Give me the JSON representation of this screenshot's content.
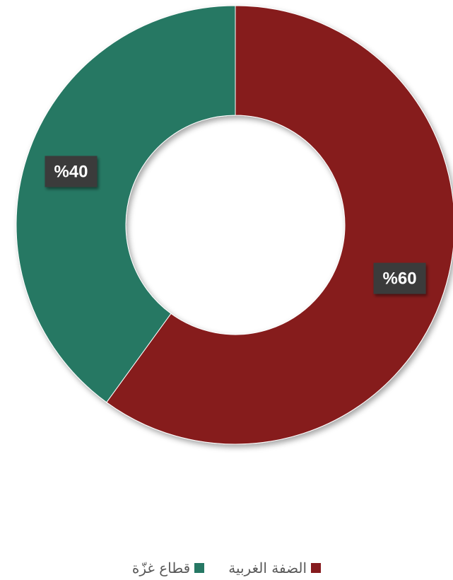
{
  "chart_data": {
    "type": "pie",
    "style": "donut",
    "title": "",
    "series": [
      {
        "name": "الضفة الغربية",
        "value": 60,
        "label": "%60",
        "color": "#861b1e"
      },
      {
        "name": "قطاع غزّة",
        "value": 40,
        "label": "%40",
        "color": "#267864"
      }
    ],
    "legend": {
      "placement": "bottom"
    }
  }
}
